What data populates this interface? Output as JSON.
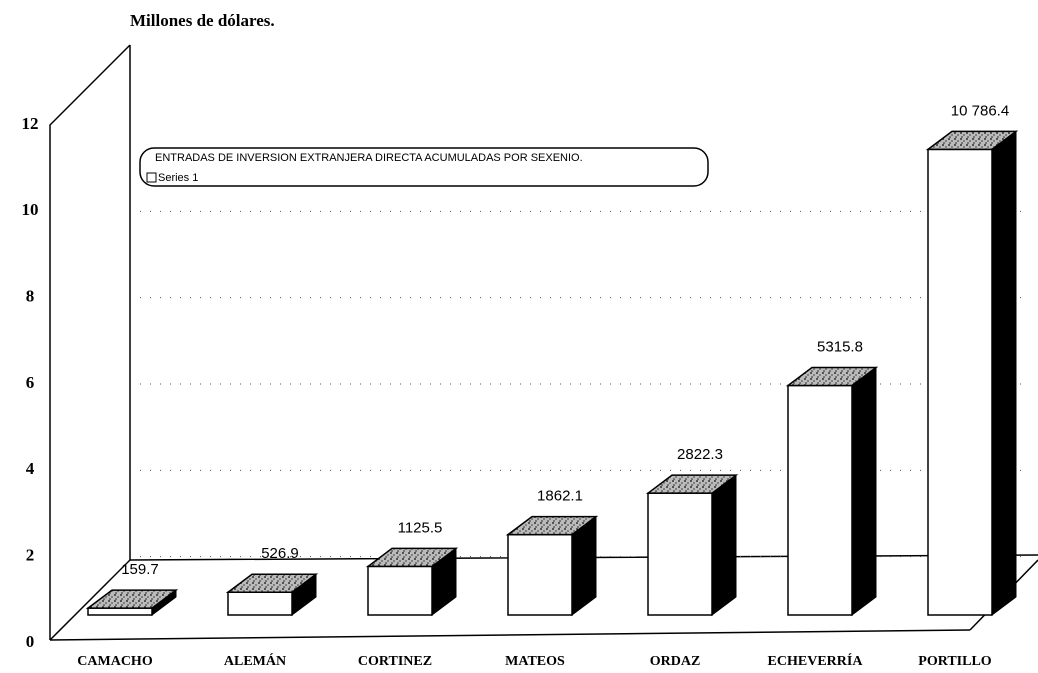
{
  "chart_data": {
    "type": "bar3d",
    "title": "Millones de dólares.",
    "legend_title": "ENTRADAS DE INVERSION EXTRANJERA DIRECTA ACUMULADAS POR SEXENIO.",
    "categories": [
      "CAMACHO",
      "ALEMÁN",
      "CORTINEZ",
      "MATEOS",
      "ORDAZ",
      "ECHEVERRÍA",
      "PORTILLO"
    ],
    "series": [
      {
        "name": "Series 1",
        "color": "#ffffff",
        "values": [
          0.1597,
          0.5269,
          1.1255,
          1.8621,
          2.8223,
          5.3158,
          10.7864
        ],
        "value_labels": [
          "159.7",
          "526.9",
          "1125.5",
          "1862.1",
          "2822.3",
          "5315.8",
          "10 786.4"
        ]
      }
    ],
    "ylim": [
      0,
      12
    ],
    "yticks": [
      0,
      2,
      4,
      6,
      8,
      10,
      12
    ],
    "grid": true,
    "legend": "top-left"
  }
}
